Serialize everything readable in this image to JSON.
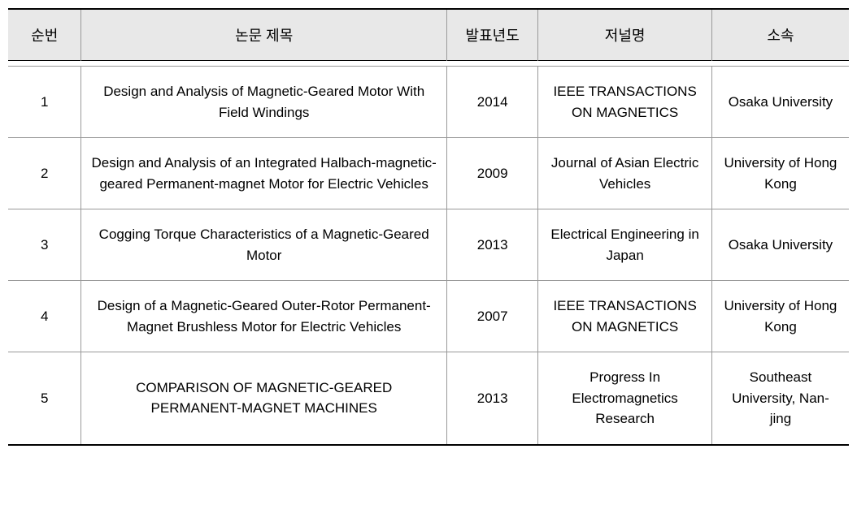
{
  "table": {
    "headers": {
      "seq": "순번",
      "title": "논문 제목",
      "year": "발표년도",
      "journal": "저널명",
      "affiliation": "소속"
    },
    "rows": [
      {
        "seq": "1",
        "title": "Design and Analysis of Magnetic-Geared Motor With Field Windings",
        "year": "2014",
        "journal": "IEEE TRANSACTIONS ON MAGNETICS",
        "affiliation": "Osaka University"
      },
      {
        "seq": "2",
        "title": "Design and Analysis of an Integrated Halbach-magnetic-geared Permanent-magnet Motor for Electric Vehicles",
        "year": "2009",
        "journal": "Journal of Asian Electric Vehicles",
        "affiliation": "University of Hong Kong"
      },
      {
        "seq": "3",
        "title": "Cogging Torque Characteristics of a Magnetic-Geared Motor",
        "year": "2013",
        "journal": "Electrical Engineering in Japan",
        "affiliation": "Osaka University"
      },
      {
        "seq": "4",
        "title": "Design of a Magnetic-Geared Outer-Rotor Permanent-Magnet Brushless Motor for Electric Vehicles",
        "year": "2007",
        "journal": "IEEE TRANSACTIONS ON MAGNETICS",
        "affiliation": "University of Hong Kong"
      },
      {
        "seq": "5",
        "title": "COMPARISON OF MAGNETIC-GEARED PERMANENT-MAGNET MACHINES",
        "year": "2013",
        "journal": "Progress In Electromagnetics Research",
        "affiliation": "Southeast University, Nan-jing"
      }
    ],
    "styling": {
      "header_bg": "#e8e8e8",
      "border_strong": "#000000",
      "border_light": "#999999",
      "text_color": "#000000",
      "header_fontsize": 18,
      "cell_fontsize": 17,
      "col_widths": {
        "seq": 80,
        "title": 400,
        "year": 100,
        "journal": 190,
        "affiliation": 150
      }
    }
  }
}
